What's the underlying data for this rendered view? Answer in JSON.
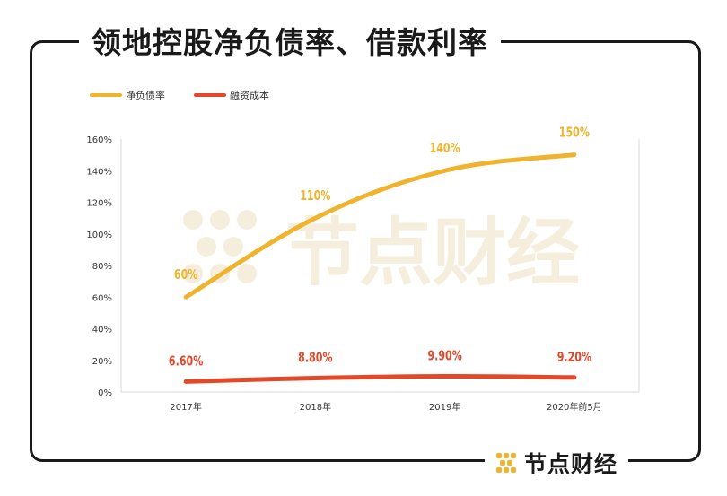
{
  "title": "领地控股净负债率、借款利率",
  "brand": {
    "name": "节点财经"
  },
  "watermark": {
    "text": "节点财经"
  },
  "colors": {
    "debt": "#F0B32D",
    "cost": "#E04A2A",
    "watermark": "#F6EEDC",
    "brand_icon": "#F0B32D"
  },
  "chart_data": {
    "type": "line",
    "categories": [
      "2017年",
      "2018年",
      "2019年",
      "2020年前5月"
    ],
    "y_ticks": [
      "0%",
      "20%",
      "40%",
      "60%",
      "80%",
      "100%",
      "120%",
      "140%",
      "160%"
    ],
    "ylim": [
      0,
      160
    ],
    "grid": false,
    "legend_position": "top-left",
    "series": [
      {
        "name": "净负债率",
        "values": [
          60,
          110,
          140,
          150
        ],
        "labels": [
          "60%",
          "110%",
          "140%",
          "150%"
        ],
        "color": "#F0B32D"
      },
      {
        "name": "融资成本",
        "values": [
          6.6,
          8.8,
          9.9,
          9.2
        ],
        "labels": [
          "6.60%",
          "8.80%",
          "9.90%",
          "9.20%"
        ],
        "color": "#E04A2A"
      }
    ]
  }
}
